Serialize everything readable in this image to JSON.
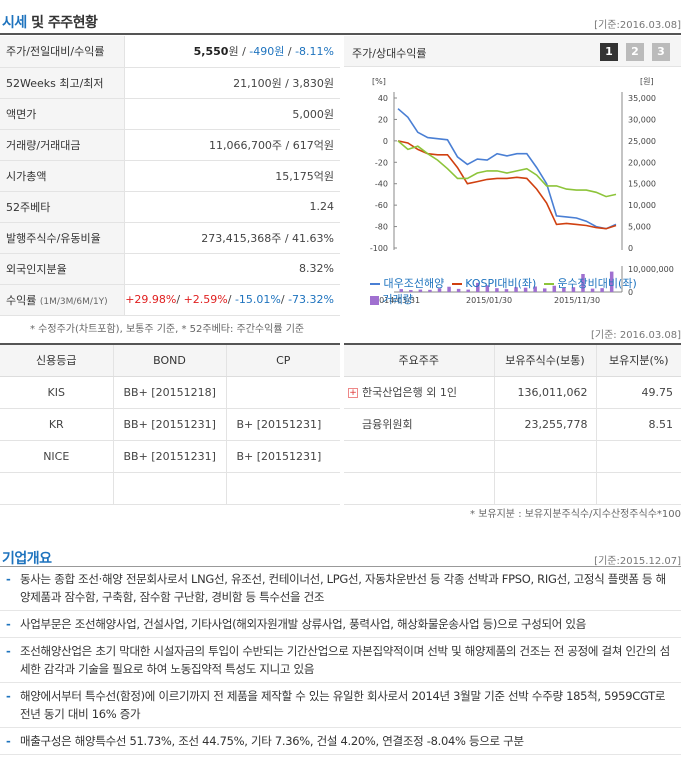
{
  "price_section": {
    "title_hl": "시세",
    "title_rest": " 및 주주현황",
    "date": "[기준:2016.03.08]",
    "rows": [
      {
        "label": "주가/전일대비/수익률",
        "price": "5,550",
        "price_unit": "원 / ",
        "change": "-490원",
        "sep": " / ",
        "rate": "-8.11%"
      },
      {
        "label": "52Weeks 최고/최저",
        "value": "21,100원 / 3,830원"
      },
      {
        "label": "액면가",
        "value": "5,000원"
      },
      {
        "label": "거래량/거래대금",
        "value": "11,066,700주 / 617억원"
      },
      {
        "label": "시가총액",
        "value": "15,175억원"
      },
      {
        "label": "52주베타",
        "value": "1.24"
      },
      {
        "label": "발행주식수/유동비율",
        "value": "273,415,368주 / 41.63%"
      },
      {
        "label": "외국인지분율",
        "value": "8.32%"
      }
    ],
    "returns": {
      "label": "수익률",
      "periods": "(1M/3M/6M/1Y)",
      "r1": "+29.98%",
      "r2": "+2.59%",
      "r3": "-15.01%",
      "r4": "-73.32%"
    },
    "note": "* 수정주가(차트포함), 보통주 기준, * 52주베타: 주간수익률 기준"
  },
  "chart_panel": {
    "title": "주가/상대수익률",
    "pages": [
      "1",
      "2",
      "3"
    ],
    "legend": {
      "s1": "대우조선해양",
      "s2": "KOSPI대비(좌)",
      "s3": "운수장비대비(좌)",
      "vol": "거래량"
    },
    "colors": {
      "s1": "#4a7fd4",
      "s2": "#d04010",
      "s3": "#8dc43a",
      "vol": "#a070d0"
    }
  },
  "chart_data": {
    "type": "line",
    "left_axis_unit": "[%]",
    "right_axis_unit": "[원]",
    "left_ticks": [
      "40",
      "20",
      "0",
      "-20",
      "-40",
      "-60",
      "-80",
      "-100"
    ],
    "right_ticks": [
      "35,000",
      "30,000",
      "25,000",
      "20,000",
      "15,000",
      "10,000",
      "5,000",
      "0"
    ],
    "vol_ticks": [
      "10,000,000",
      "0"
    ],
    "x_labels": [
      "2014/03/31",
      "2015/01/30",
      "2015/11/30"
    ],
    "ylim_left": [
      -100,
      40
    ],
    "series": [
      {
        "name": "대우조선해양",
        "values": [
          30,
          22,
          8,
          3,
          2,
          1,
          -15,
          -22,
          -17,
          -18,
          -12,
          -14,
          -12,
          -12,
          -25,
          -40,
          -70,
          -71,
          -72,
          -75,
          -80,
          -82,
          -78
        ]
      },
      {
        "name": "KOSPI대비(좌)",
        "values": [
          0,
          -2,
          -8,
          -12,
          -13,
          -13,
          -25,
          -40,
          -38,
          -36,
          -35,
          -35,
          -34,
          -35,
          -45,
          -58,
          -78,
          -77,
          -78,
          -79,
          -81,
          -82,
          -79
        ]
      },
      {
        "name": "운수장비대비(좌)",
        "values": [
          0,
          -8,
          -5,
          -12,
          -18,
          -26,
          -35,
          -35,
          -30,
          -28,
          -28,
          -30,
          -28,
          -26,
          -32,
          -42,
          -42,
          -45,
          -46,
          -46,
          -48,
          -52,
          -50
        ]
      }
    ],
    "volume": [
      1.2,
      0.8,
      1.0,
      0.9,
      1.5,
      2.2,
      1.3,
      1.0,
      3.8,
      2.8,
      1.6,
      1.2,
      2.0,
      1.8,
      2.3,
      1.5,
      2.6,
      1.8,
      2.0,
      7.5,
      1.4,
      1.6,
      8.5
    ]
  },
  "chart_note": "[기준: 2016.03.08]",
  "credit": {
    "headers": [
      "신용등급",
      "BOND",
      "CP"
    ],
    "rows": [
      [
        "KIS",
        "BB+ [20151218]",
        ""
      ],
      [
        "KR",
        "BB+ [20151231]",
        "B+ [20151231]"
      ],
      [
        "NICE",
        "BB+ [20151231]",
        "B+ [20151231]"
      ]
    ]
  },
  "holders": {
    "headers": [
      "주요주주",
      "보유주식수(보통)",
      "보유지분(%)"
    ],
    "rows": [
      [
        "한국산업은행 외 1인",
        "136,011,062",
        "49.75"
      ],
      [
        "금융위원회",
        "23,255,778",
        "8.51"
      ]
    ],
    "note": "* 보유지분 : 보유지분주식수/지수산정주식수*100"
  },
  "overview": {
    "title": "기업개요",
    "date": "[기준:2015.12.07]",
    "items": [
      "동사는 종합 조선·해양 전문회사로서 LNG선, 유조선, 컨테이너선, LPG선, 자동차운반선 등 각종 선박과 FPSO, RIG선, 고정식 플랫폼 등 해양제품과 잠수함, 구축함, 잠수함 구난함, 경비함 등 특수선을 건조",
      "사업부문은 조선해양사업, 건설사업, 기타사업(해외자원개발 상류사업, 풍력사업, 해상화물운송사업 등)으로 구성되어 있음",
      "조선해양산업은 초기 막대한 시설자금의 투입이 수반되는 기간산업으로 자본집약적이며 선박 및 해양제품의 건조는 전 공정에 걸쳐 인간의 섬세한 감각과 기술을 필요로 하여 노동집약적 특성도 지니고 있음",
      "해양에서부터 특수선(함정)에 이르기까지 전 제품을 제작할 수 있는 유일한 회사로서 2014년 3월말 기준 선박 수주량 185척, 5959CGT로 전년 동기 대비 16% 증가",
      "매출구성은 해양특수선 51.73%, 조선 44.75%, 기타 7.36%, 건설 4.20%, 연결조정 -8.04% 등으로 구분"
    ]
  }
}
